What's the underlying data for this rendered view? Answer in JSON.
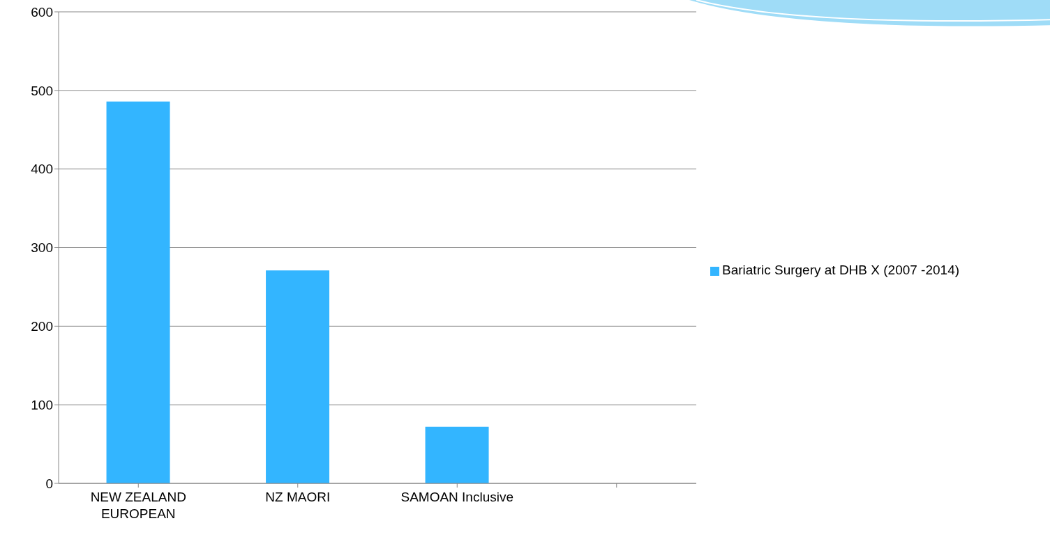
{
  "chart_data": {
    "type": "bar",
    "categories": [
      "NEW ZEALAND EUROPEAN",
      "NZ MAORI",
      "SAMOAN Inclusive",
      null
    ],
    "series": [
      {
        "name": "Bariatric Surgery at DHB X (2007 -2014)",
        "color": "#33b5ff",
        "values": [
          486,
          271,
          72,
          null
        ]
      }
    ],
    "ylim": [
      0,
      600
    ],
    "yticks": [
      0,
      100,
      200,
      300,
      400,
      500,
      600
    ],
    "grid": "y",
    "legend": "right"
  }
}
